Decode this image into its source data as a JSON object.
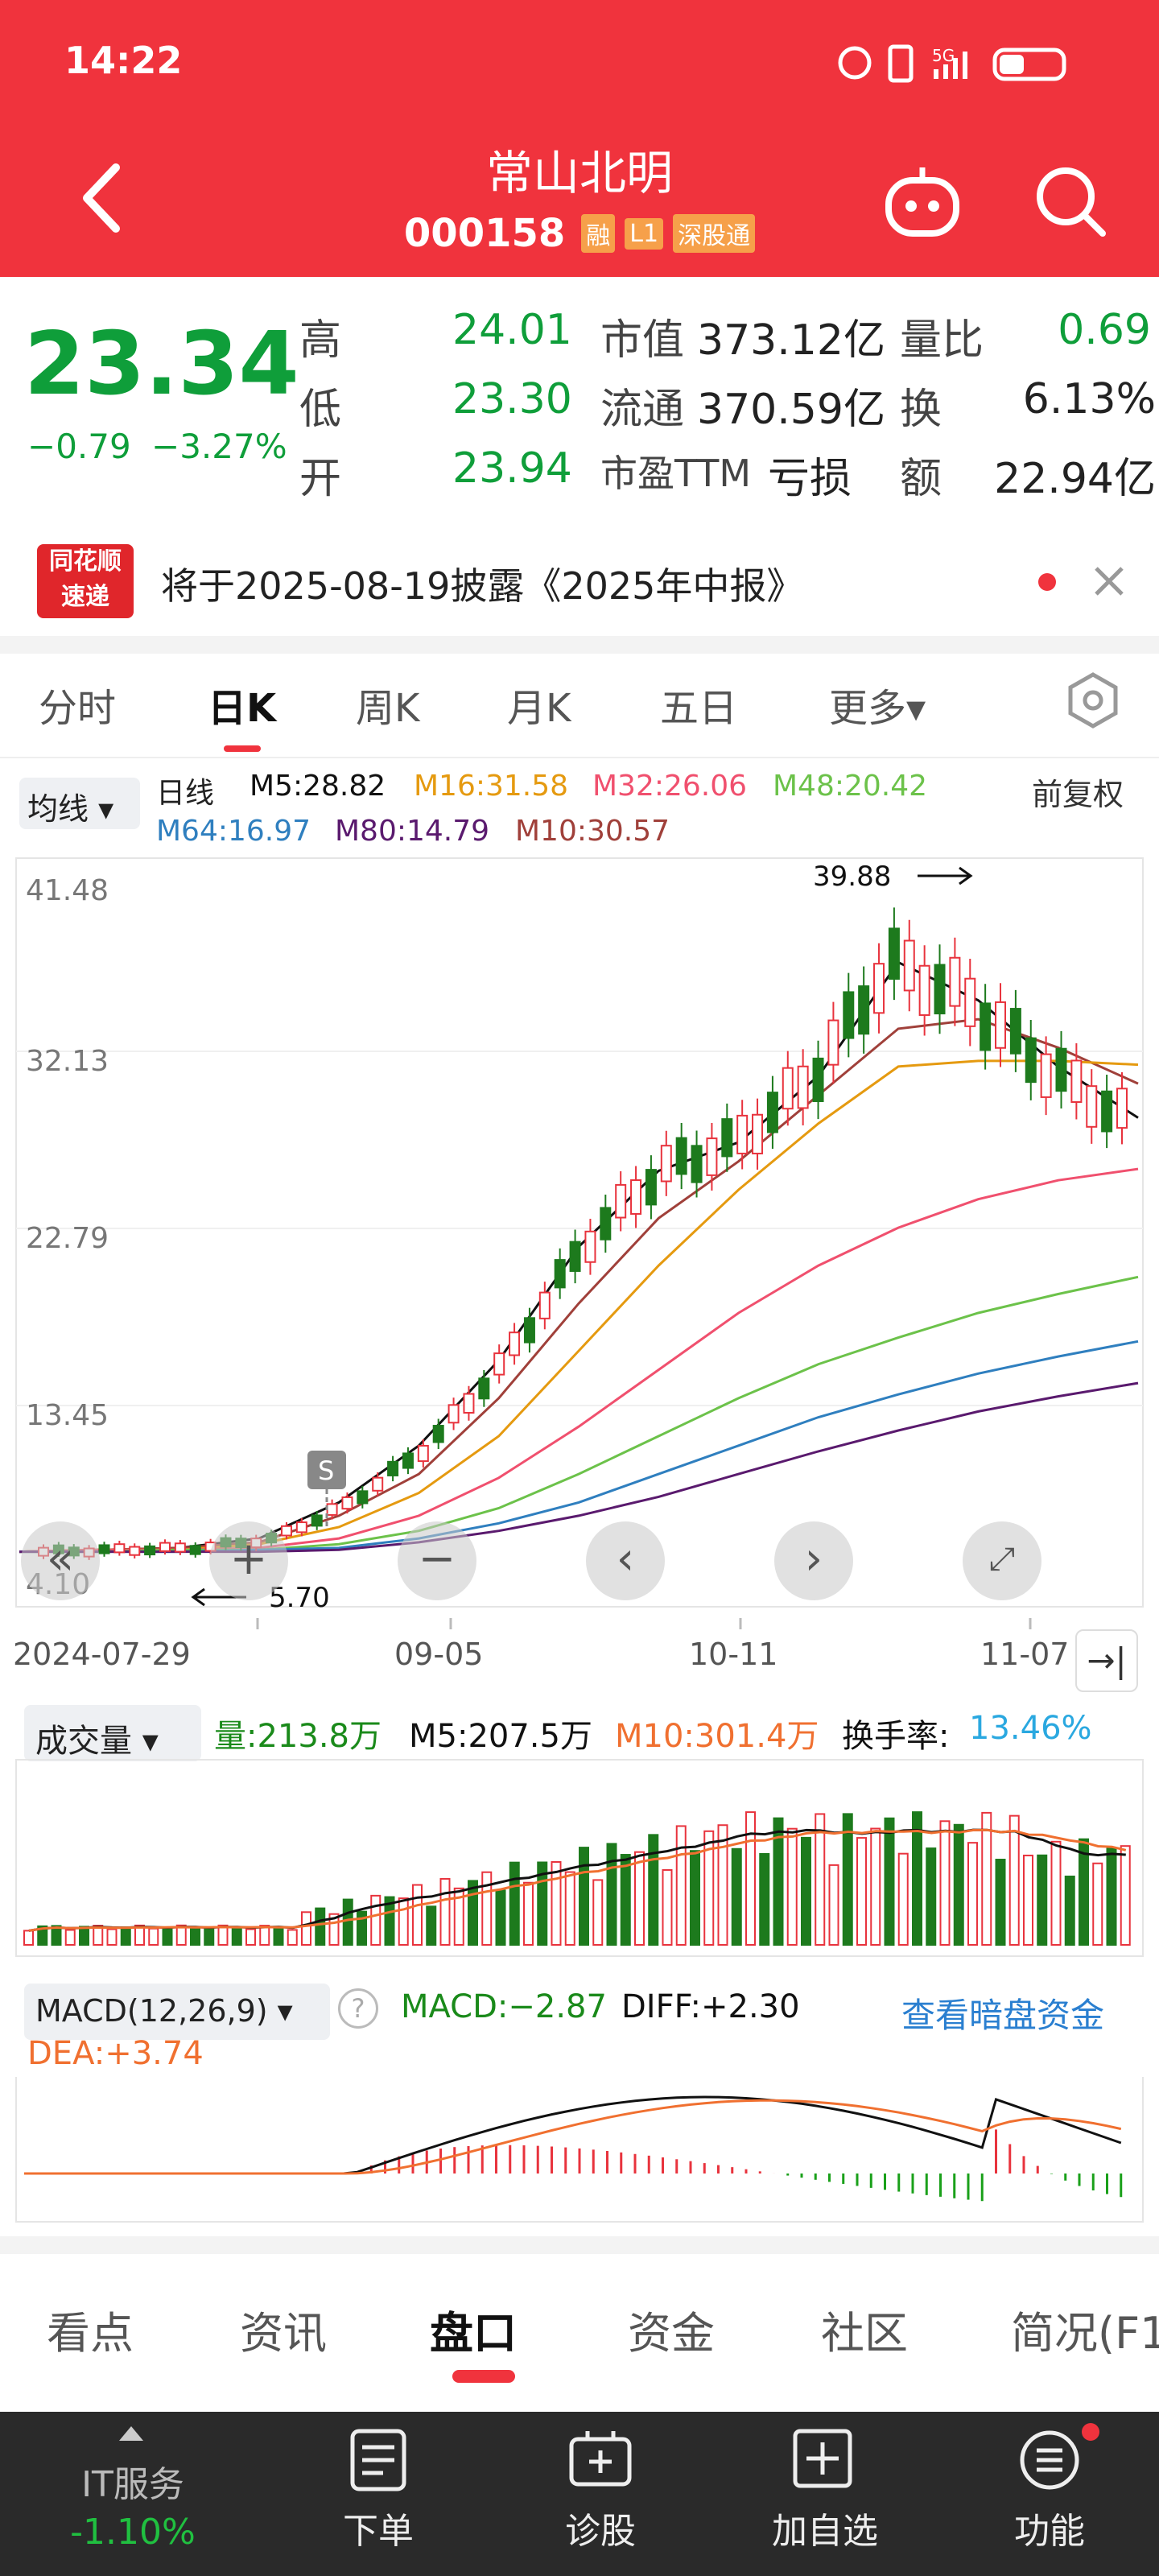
{
  "status": {
    "time": "14:22",
    "network": "5G"
  },
  "header": {
    "title": "常山北明",
    "code": "000158",
    "badges": [
      "融",
      "L1",
      "深股通"
    ],
    "icons": [
      "back-icon",
      "robot-icon",
      "search-icon"
    ]
  },
  "quote": {
    "price": "23.34",
    "change": "−0.79",
    "change_pct": "−3.27%",
    "rows": [
      {
        "l1": "高",
        "v1": "24.01",
        "l2": "市值",
        "v2": "373.12亿",
        "l3": "量比",
        "v3": "0.69"
      },
      {
        "l1": "低",
        "v1": "23.30",
        "l2": "流通",
        "v2": "370.59亿",
        "l3": "换",
        "v3": "6.13%"
      },
      {
        "l1": "开",
        "v1": "23.94",
        "l2": "市盈TTM",
        "v2": "亏损",
        "l3": "额",
        "v3": "22.94亿"
      }
    ]
  },
  "notice": {
    "logo_top": "同花顺",
    "logo_bottom": "速递",
    "text": "将于2025-08-19披露《2025年中报》"
  },
  "period_tabs": [
    "分时",
    "日K",
    "周K",
    "月K",
    "五日",
    "更多▾"
  ],
  "legend": {
    "ma_button": "均线 ▾",
    "row1": [
      "日线",
      "M5:28.82",
      "M16:31.58",
      "M32:26.06",
      "M48:20.42"
    ],
    "row2": [
      "M64:16.97",
      "M80:14.79",
      "M10:30.57"
    ],
    "adjust": "前复权"
  },
  "colors": {
    "red": "#f0333d",
    "green": "#1a8a1a",
    "M5": "#111111",
    "M16": "#e59a10",
    "M32": "#f0506e",
    "M48": "#6cc24a",
    "M64": "#2f7fbf",
    "M80": "#5a1a6e",
    "M10": "#a0403a"
  },
  "chart_data": {
    "type": "candlestick",
    "y_ticks": [
      "41.48",
      "32.13",
      "22.79",
      "13.45",
      "4.10"
    ],
    "ylim": [
      4.1,
      41.48
    ],
    "x_ticks": [
      "2024-07-29",
      "09-05",
      "10-11",
      "11-07"
    ],
    "high_label": "39.88",
    "low_label": "5.70",
    "marker": "S",
    "ma_lines": [
      {
        "name": "M5",
        "values": [
          5.9,
          6.0,
          6.1,
          6.6,
          8.5,
          11.5,
          16.0,
          22.0,
          26.0,
          27.5,
          31.0,
          37.0,
          35.0,
          31.5,
          28.8
        ]
      },
      {
        "name": "M10",
        "values": [
          5.9,
          6.0,
          6.1,
          6.4,
          7.8,
          10.0,
          14.0,
          19.0,
          23.5,
          26.5,
          30.0,
          33.5,
          34.0,
          32.5,
          30.6
        ]
      },
      {
        "name": "M16",
        "values": [
          5.9,
          6.0,
          6.0,
          6.3,
          7.2,
          9.0,
          12.0,
          16.5,
          21.0,
          25.0,
          28.5,
          31.5,
          31.8,
          31.8,
          31.6
        ]
      },
      {
        "name": "M32",
        "values": [
          5.9,
          6.0,
          6.0,
          6.1,
          6.6,
          7.8,
          9.8,
          12.5,
          15.5,
          18.5,
          21.0,
          23.0,
          24.5,
          25.5,
          26.1
        ]
      },
      {
        "name": "M48",
        "values": [
          5.9,
          5.9,
          6.0,
          6.0,
          6.3,
          7.0,
          8.2,
          10.0,
          12.0,
          14.0,
          15.8,
          17.2,
          18.5,
          19.5,
          20.4
        ]
      },
      {
        "name": "M64",
        "values": [
          5.9,
          5.9,
          5.9,
          6.0,
          6.1,
          6.6,
          7.4,
          8.5,
          10.0,
          11.5,
          13.0,
          14.2,
          15.3,
          16.2,
          17.0
        ]
      },
      {
        "name": "M80",
        "values": [
          5.9,
          5.9,
          5.9,
          5.9,
          6.0,
          6.4,
          7.0,
          7.8,
          8.8,
          10.0,
          11.2,
          12.3,
          13.3,
          14.1,
          14.8
        ]
      }
    ]
  },
  "volume": {
    "button": "成交量 ▾",
    "vol": "量:213.8万",
    "m5": "M5:207.5万",
    "m10": "M10:301.4万",
    "turnover_label": "换手率:",
    "turnover": "13.46%"
  },
  "macd": {
    "button": "MACD(12,26,9) ▾",
    "help_icon": "help-icon",
    "macd": "MACD:−2.87",
    "diff": "DIFF:+2.30",
    "link": "查看暗盘资金",
    "dea": "DEA:+3.74"
  },
  "bottom_tabs": [
    "看点",
    "资讯",
    "盘口",
    "资金",
    "社区",
    "简况(F1"
  ],
  "bottom_bar": {
    "sector_name": "IT服务",
    "sector_change": "-1.10%",
    "items": [
      "下单",
      "诊股",
      "加自选",
      "功能"
    ]
  }
}
